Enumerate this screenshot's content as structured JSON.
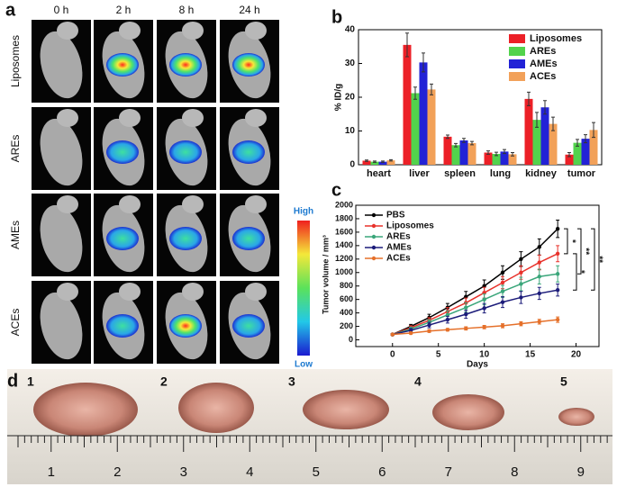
{
  "panel_a": {
    "label": "a",
    "columns": [
      "0 h",
      "2 h",
      "8 h",
      "24 h"
    ],
    "rows": [
      "Liposomes",
      "AREs",
      "AMEs",
      "ACEs"
    ],
    "scale": {
      "high": "High",
      "low": "Low"
    }
  },
  "chart_data": [
    {
      "type": "bar",
      "panel_label": "b",
      "ylabel": "% ID/g",
      "categories": [
        "heart",
        "liver",
        "spleen",
        "lung",
        "kidney",
        "tumor"
      ],
      "ylim": [
        0,
        40
      ],
      "yticks": [
        0,
        10,
        20,
        30,
        40
      ],
      "legend": "upper right",
      "series": [
        {
          "name": "Liposomes",
          "color": "#ec2027",
          "values": [
            1.2,
            35.5,
            8.3,
            3.6,
            19.5,
            3.0
          ],
          "errors": [
            0.2,
            3.5,
            0.5,
            0.5,
            2.0,
            0.6
          ]
        },
        {
          "name": "AREs",
          "color": "#52d34c",
          "values": [
            0.9,
            21.2,
            5.8,
            3.2,
            13.3,
            6.5
          ],
          "errors": [
            0.2,
            1.8,
            0.5,
            0.5,
            2.2,
            1.0
          ]
        },
        {
          "name": "AMEs",
          "color": "#2222d6",
          "values": [
            0.9,
            30.3,
            7.2,
            3.9,
            17.0,
            7.7
          ],
          "errors": [
            0.2,
            2.8,
            0.6,
            0.6,
            2.0,
            1.2
          ]
        },
        {
          "name": "ACEs",
          "color": "#f2a159",
          "values": [
            1.3,
            22.3,
            6.4,
            3.1,
            12.1,
            10.3
          ],
          "errors": [
            0.2,
            1.6,
            0.5,
            0.5,
            2.0,
            2.2
          ]
        }
      ]
    },
    {
      "type": "line",
      "panel_label": "c",
      "xlabel": "Days",
      "ylabel": "Tumor volume / mm³",
      "x": [
        0,
        2,
        4,
        6,
        8,
        10,
        12,
        14,
        16,
        18
      ],
      "xlim": [
        -4,
        22.5
      ],
      "xticks": [
        0,
        5,
        10,
        15,
        20
      ],
      "ylim": [
        -100,
        2000
      ],
      "yticks": [
        0,
        200,
        400,
        600,
        800,
        1000,
        1200,
        1400,
        1600,
        1800,
        2000
      ],
      "legend": "upper left",
      "annotations": [
        "*",
        "**",
        "**",
        "*"
      ],
      "series": [
        {
          "name": "PBS",
          "color": "#000000",
          "values": [
            80,
            200,
            330,
            480,
            640,
            800,
            1000,
            1200,
            1380,
            1650
          ],
          "errors": [
            10,
            30,
            50,
            60,
            80,
            90,
            100,
            110,
            120,
            130
          ]
        },
        {
          "name": "Liposomes",
          "color": "#e8322b",
          "values": [
            80,
            180,
            290,
            420,
            550,
            700,
            850,
            1000,
            1150,
            1280
          ],
          "errors": [
            10,
            30,
            40,
            60,
            70,
            80,
            90,
            100,
            110,
            120
          ]
        },
        {
          "name": "AREs",
          "color": "#3aa67a",
          "values": [
            80,
            160,
            260,
            370,
            480,
            600,
            720,
            830,
            940,
            980
          ],
          "errors": [
            10,
            30,
            40,
            60,
            70,
            80,
            90,
            100,
            110,
            120
          ]
        },
        {
          "name": "AMEs",
          "color": "#1c1c7a",
          "values": [
            80,
            140,
            220,
            300,
            380,
            470,
            560,
            630,
            690,
            740
          ],
          "errors": [
            10,
            30,
            40,
            50,
            60,
            70,
            80,
            90,
            90,
            90
          ]
        },
        {
          "name": "ACEs",
          "color": "#e5702a",
          "values": [
            80,
            100,
            130,
            150,
            170,
            190,
            210,
            240,
            270,
            300
          ],
          "errors": [
            10,
            15,
            20,
            20,
            25,
            25,
            30,
            30,
            35,
            40
          ]
        }
      ]
    }
  ],
  "panel_d": {
    "label": "d",
    "samples": [
      "1",
      "2",
      "3",
      "4",
      "5"
    ],
    "ruler": [
      "1",
      "2",
      "3",
      "4",
      "5",
      "6",
      "7",
      "8",
      "9"
    ]
  }
}
